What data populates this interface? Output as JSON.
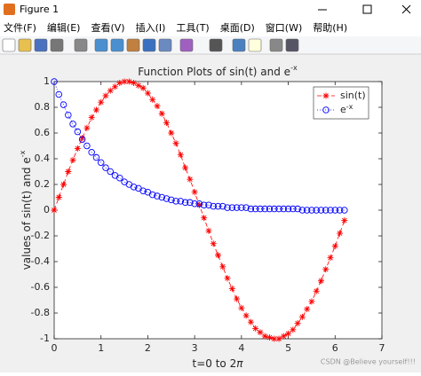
{
  "window": {
    "title": "Figure 1",
    "menu": [
      "文件(F)",
      "编辑(E)",
      "查看(V)",
      "插入(I)",
      "工具(T)",
      "桌面(D)",
      "窗口(W)",
      "帮助(H)"
    ]
  },
  "watermark": "CSDN @Believe yourself!!!",
  "chart_data": {
    "type": "line",
    "title": "Function Plots of sin(t) and e",
    "title_sup": "-x",
    "x_label": "t=0 to 2",
    "x_label_symbol": "π",
    "y_label": "values of sin(t) and e",
    "y_label_sup": "-x",
    "x": [
      0,
      0.1,
      0.2,
      0.3,
      0.4,
      0.5,
      0.6,
      0.7,
      0.8,
      0.9,
      1,
      1.1,
      1.2,
      1.3,
      1.4,
      1.5,
      1.6,
      1.7,
      1.8,
      1.9,
      2,
      2.1,
      2.2,
      2.3,
      2.4,
      2.5,
      2.6,
      2.7,
      2.8,
      2.9,
      3,
      3.1,
      3.2,
      3.3,
      3.4,
      3.5,
      3.6,
      3.7,
      3.8,
      3.9,
      4,
      4.1,
      4.2,
      4.3,
      4.4,
      4.5,
      4.6,
      4.7,
      4.8,
      4.9,
      5,
      5.1,
      5.2,
      5.3,
      5.4,
      5.5,
      5.6,
      5.7,
      5.8,
      5.9,
      6,
      6.1,
      6.2
    ],
    "series": [
      {
        "name": "sin(t)",
        "color": "#ff0000",
        "line_style": "dashed",
        "marker": "asterisk",
        "values": [
          0,
          0.1,
          0.2,
          0.3,
          0.39,
          0.48,
          0.56,
          0.64,
          0.72,
          0.78,
          0.84,
          0.89,
          0.93,
          0.96,
          0.99,
          1,
          1,
          0.99,
          0.97,
          0.95,
          0.91,
          0.86,
          0.81,
          0.75,
          0.68,
          0.6,
          0.52,
          0.43,
          0.33,
          0.24,
          0.14,
          0.04,
          -0.06,
          -0.16,
          -0.26,
          -0.35,
          -0.44,
          -0.53,
          -0.61,
          -0.69,
          -0.76,
          -0.82,
          -0.87,
          -0.92,
          -0.95,
          -0.98,
          -0.99,
          -1,
          -1,
          -0.98,
          -0.96,
          -0.93,
          -0.88,
          -0.83,
          -0.77,
          -0.71,
          -0.63,
          -0.55,
          -0.46,
          -0.37,
          -0.28,
          -0.18,
          -0.08
        ]
      },
      {
        "name": "e",
        "name_sup": "-x",
        "color": "#0000ff",
        "line_style": "dotted",
        "marker": "circle",
        "values": [
          1,
          0.9,
          0.82,
          0.74,
          0.67,
          0.61,
          0.55,
          0.5,
          0.45,
          0.41,
          0.37,
          0.33,
          0.3,
          0.27,
          0.25,
          0.22,
          0.2,
          0.18,
          0.17,
          0.15,
          0.14,
          0.12,
          0.11,
          0.1,
          0.09,
          0.08,
          0.07,
          0.07,
          0.06,
          0.06,
          0.05,
          0.05,
          0.04,
          0.04,
          0.03,
          0.03,
          0.03,
          0.02,
          0.02,
          0.02,
          0.02,
          0.02,
          0.01,
          0.01,
          0.01,
          0.01,
          0.01,
          0.01,
          0.01,
          0.01,
          0.01,
          0.01,
          0.01,
          0,
          0,
          0,
          0,
          0,
          0,
          0,
          0,
          0,
          0
        ]
      }
    ],
    "xlim": [
      0,
      7
    ],
    "xticks": [
      0,
      1,
      2,
      3,
      4,
      5,
      6,
      7
    ],
    "ylim": [
      -1,
      1
    ],
    "yticks": [
      -1,
      -0.8,
      -0.6,
      -0.4,
      -0.2,
      0,
      0.2,
      0.4,
      0.6,
      0.8,
      1
    ],
    "grid": false,
    "legend": "northeast"
  }
}
